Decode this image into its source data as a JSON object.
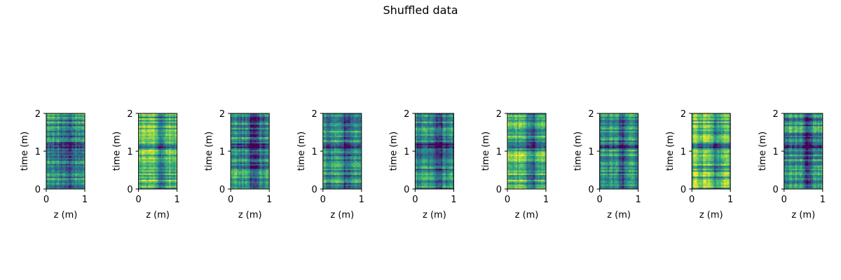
{
  "title": "Shuffled data",
  "chart_data": {
    "type": "heatmap",
    "title": "Shuffled data",
    "colormap": "viridis",
    "colormap_stops": [
      "#440154",
      "#3b528b",
      "#21918c",
      "#5ec962",
      "#fde725"
    ],
    "panels": [
      {
        "xlabel": "z (m)",
        "ylabel": "time (m)",
        "xlim": [
          0,
          1
        ],
        "ylim": [
          0,
          2
        ],
        "xticks": [
          "0",
          "1"
        ],
        "yticks": [
          "0",
          "1",
          "2"
        ],
        "variant": 0
      },
      {
        "xlabel": "z (m)",
        "ylabel": "time (m)",
        "xlim": [
          0,
          1
        ],
        "ylim": [
          0,
          2
        ],
        "xticks": [
          "0",
          "1"
        ],
        "yticks": [
          "0",
          "1",
          "2"
        ],
        "variant": 1
      },
      {
        "xlabel": "z (m)",
        "ylabel": "time (m)",
        "xlim": [
          0,
          1
        ],
        "ylim": [
          0,
          2
        ],
        "xticks": [
          "0",
          "1"
        ],
        "yticks": [
          "0",
          "1",
          "2"
        ],
        "variant": 2
      },
      {
        "xlabel": "z (m)",
        "ylabel": "time (m)",
        "xlim": [
          0,
          1
        ],
        "ylim": [
          0,
          2
        ],
        "xticks": [
          "0",
          "1"
        ],
        "yticks": [
          "0",
          "1",
          "2"
        ],
        "variant": 3
      },
      {
        "xlabel": "z (m)",
        "ylabel": "time (m)",
        "xlim": [
          0,
          1
        ],
        "ylim": [
          0,
          2
        ],
        "xticks": [
          "0",
          "1"
        ],
        "yticks": [
          "0",
          "1",
          "2"
        ],
        "variant": 4
      },
      {
        "xlabel": "z (m)",
        "ylabel": "time (m)",
        "xlim": [
          0,
          1
        ],
        "ylim": [
          0,
          2
        ],
        "xticks": [
          "0",
          "1"
        ],
        "yticks": [
          "0",
          "1",
          "2"
        ],
        "variant": 5
      },
      {
        "xlabel": "z (m)",
        "ylabel": "time (m)",
        "xlim": [
          0,
          1
        ],
        "ylim": [
          0,
          2
        ],
        "xticks": [
          "0",
          "1"
        ],
        "yticks": [
          "0",
          "1",
          "2"
        ],
        "variant": 6
      },
      {
        "xlabel": "z (m)",
        "ylabel": "time (m)",
        "xlim": [
          0,
          1
        ],
        "ylim": [
          0,
          2
        ],
        "xticks": [
          "0",
          "1"
        ],
        "yticks": [
          "0",
          "1",
          "2"
        ],
        "variant": 7
      },
      {
        "xlabel": "z (m)",
        "ylabel": "time (m)",
        "xlim": [
          0,
          1
        ],
        "ylim": [
          0,
          2
        ],
        "xticks": [
          "0",
          "1"
        ],
        "yticks": [
          "0",
          "1",
          "2"
        ],
        "variant": 8
      }
    ]
  }
}
